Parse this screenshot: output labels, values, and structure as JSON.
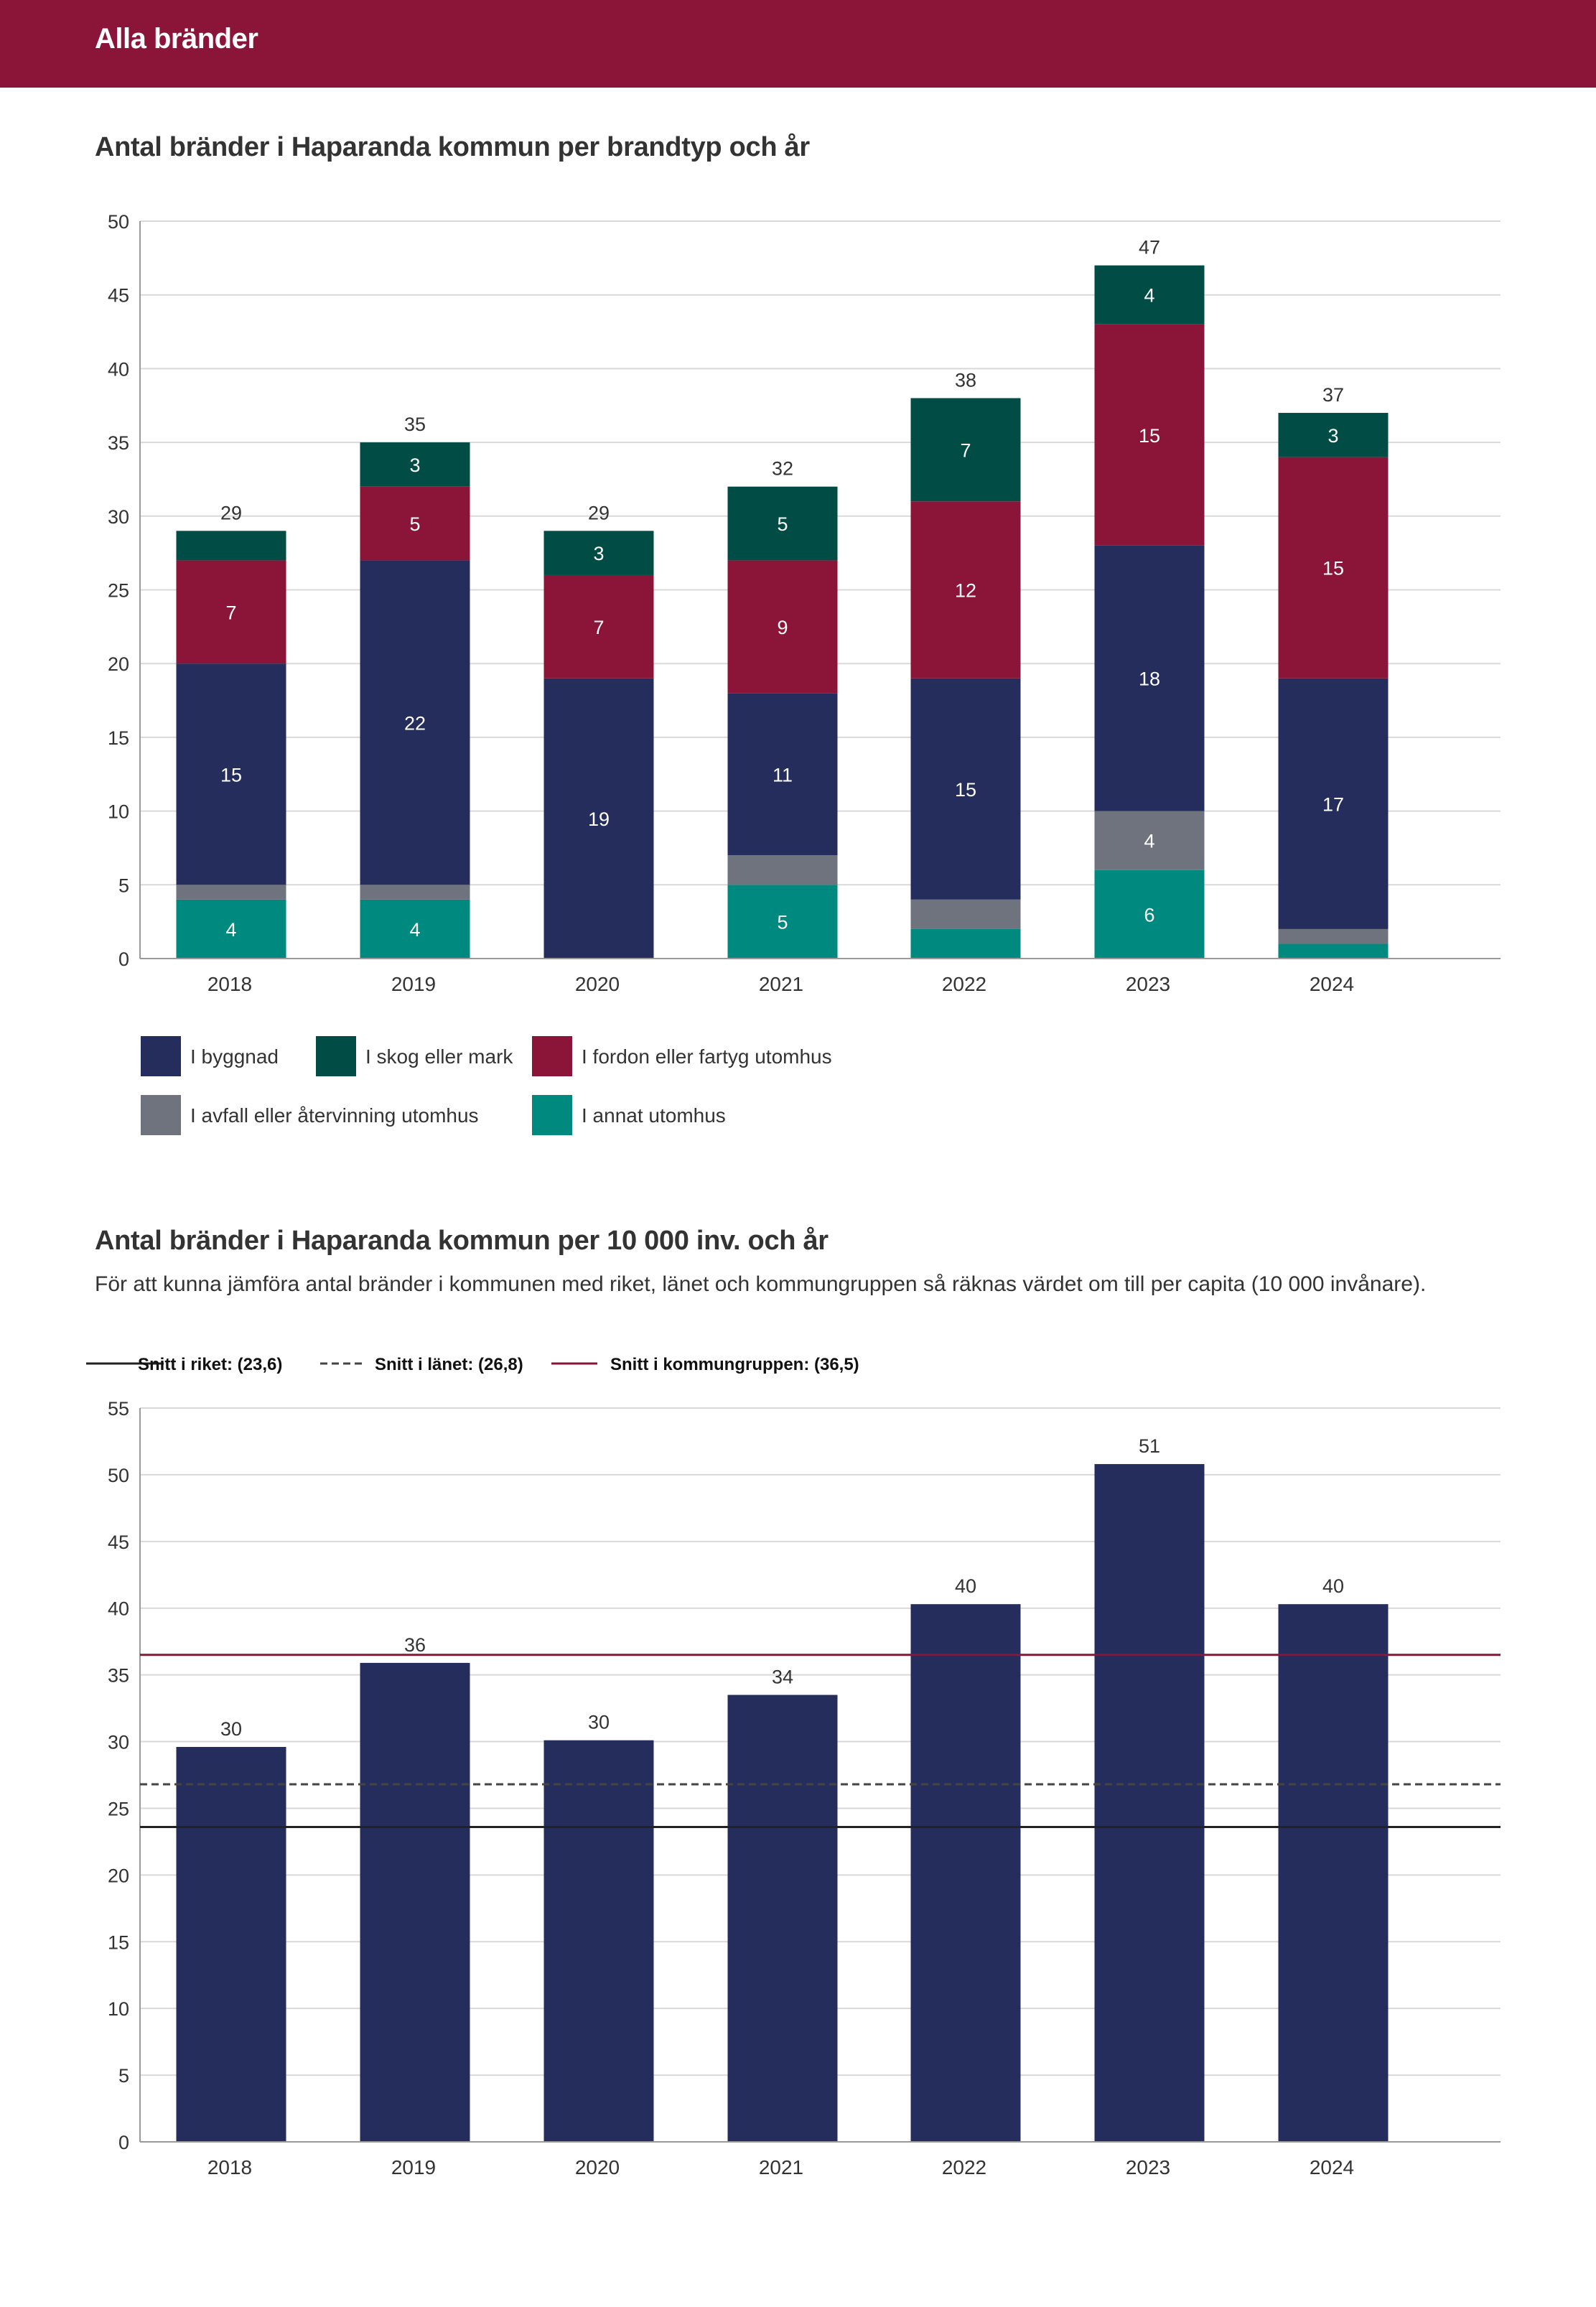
{
  "header": {
    "title": "Alla bränder"
  },
  "chart1": {
    "title": "Antal bränder i Haparanda kommun per brandtyp och år"
  },
  "chart2": {
    "title": "Antal bränder i Haparanda kommun per 10 000 inv. och år",
    "subtitle": "För att kunna jämföra antal bränder i kommunen med riket, länet och kommungruppen så räknas värdet om till per capita (10 000 invånare)."
  },
  "colors": {
    "byggnad": "#252d5c",
    "skog": "#014d45",
    "fordon": "#8b1538",
    "avfall": "#6e737d",
    "annat": "#00897e",
    "header": "#8b1538"
  },
  "chart_data": [
    {
      "type": "bar",
      "stacked": true,
      "title": "Antal bränder i Haparanda kommun per brandtyp och år",
      "categories": [
        "2018",
        "2019",
        "2020",
        "2021",
        "2022",
        "2023",
        "2024"
      ],
      "ylim": [
        0,
        50
      ],
      "yticks": [
        0,
        5,
        10,
        15,
        20,
        25,
        30,
        35,
        40,
        45,
        50
      ],
      "totals": [
        29,
        35,
        29,
        32,
        38,
        47,
        37
      ],
      "series": [
        {
          "key": "annat",
          "name": "I annat utomhus",
          "values": [
            4,
            4,
            0,
            5,
            2,
            6,
            1
          ],
          "show_labels": [
            true,
            true,
            false,
            true,
            false,
            true,
            false
          ]
        },
        {
          "key": "avfall",
          "name": "I avfall eller återvinning utomhus",
          "values": [
            1,
            1,
            0,
            2,
            2,
            4,
            1
          ],
          "show_labels": [
            false,
            false,
            false,
            false,
            false,
            true,
            false
          ]
        },
        {
          "key": "byggnad",
          "name": "I byggnad",
          "values": [
            15,
            22,
            19,
            11,
            15,
            18,
            17
          ],
          "show_labels": [
            true,
            true,
            true,
            true,
            true,
            true,
            true
          ]
        },
        {
          "key": "fordon",
          "name": "I fordon eller fartyg utomhus",
          "values": [
            7,
            5,
            7,
            9,
            12,
            15,
            15
          ],
          "show_labels": [
            true,
            true,
            true,
            true,
            true,
            true,
            true
          ]
        },
        {
          "key": "skog",
          "name": "I skog eller mark",
          "values": [
            2,
            3,
            3,
            5,
            7,
            4,
            3
          ],
          "show_labels": [
            false,
            true,
            true,
            true,
            true,
            true,
            true
          ]
        }
      ],
      "legend": [
        {
          "key": "byggnad",
          "label": "I byggnad"
        },
        {
          "key": "skog",
          "label": "I skog eller mark"
        },
        {
          "key": "fordon",
          "label": "I fordon eller fartyg utomhus"
        },
        {
          "key": "avfall",
          "label": "I avfall eller återvinning utomhus"
        },
        {
          "key": "annat",
          "label": "I annat utomhus"
        }
      ]
    },
    {
      "type": "bar",
      "title": "Antal bränder i Haparanda kommun per 10 000 inv. och år",
      "categories": [
        "2018",
        "2019",
        "2020",
        "2021",
        "2022",
        "2023",
        "2024"
      ],
      "values": [
        29.6,
        35.9,
        30.1,
        33.5,
        40.3,
        50.8,
        40.3
      ],
      "value_labels": [
        "30",
        "36",
        "30",
        "34",
        "40",
        "51",
        "40"
      ],
      "ylim": [
        0,
        55
      ],
      "yticks": [
        0,
        5,
        10,
        15,
        20,
        25,
        30,
        35,
        40,
        45,
        50,
        55
      ],
      "reference_lines": [
        {
          "key": "riket",
          "label": "Snitt i riket: (23,6)",
          "value": 23.6,
          "color": "#222222",
          "style": "solid"
        },
        {
          "key": "lanet",
          "label": "Snitt i länet: (26,8)",
          "value": 26.8,
          "color": "#444444",
          "style": "dashed"
        },
        {
          "key": "kommungruppen",
          "label": "Snitt i kommungruppen: (36,5)",
          "value": 36.5,
          "color": "#8b1538",
          "style": "solid"
        }
      ]
    }
  ]
}
